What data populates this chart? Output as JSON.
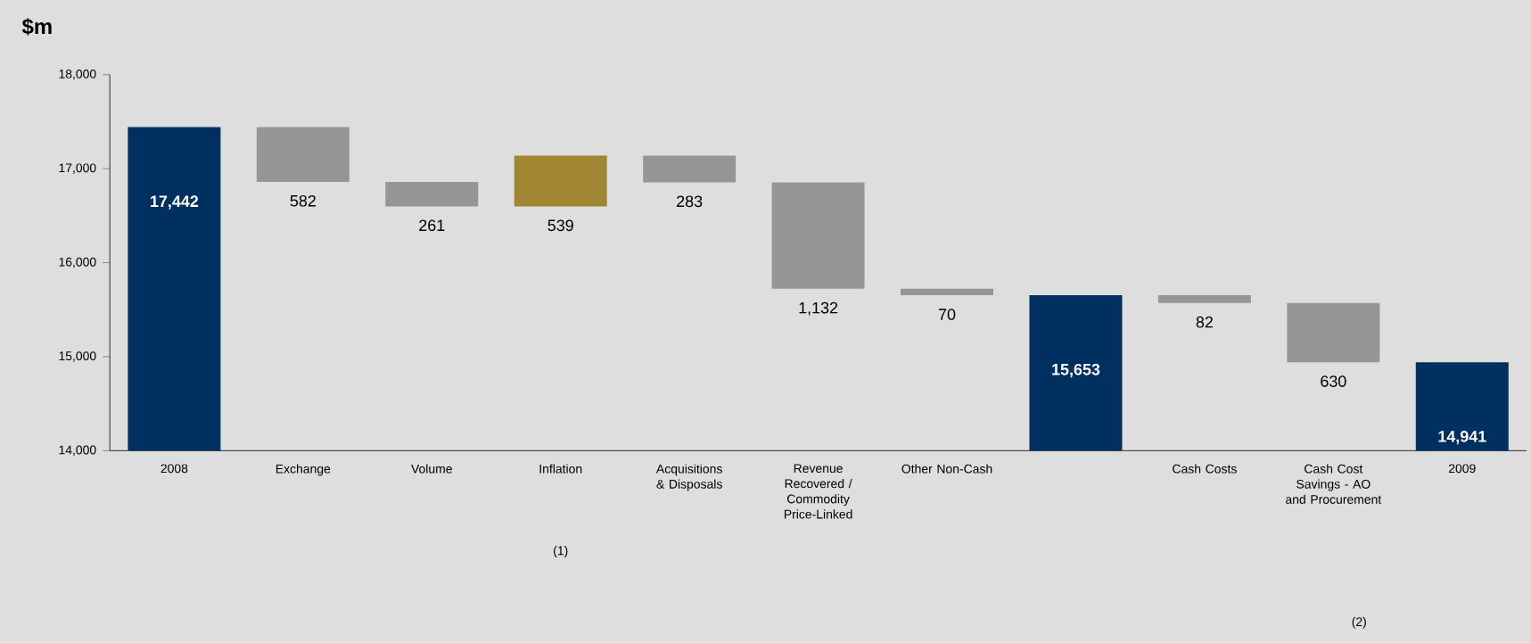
{
  "chart_data": {
    "type": "bar",
    "ylabel": "$m",
    "categories": [
      "2008",
      "Exchange",
      "Volume",
      "Inflation",
      "Acquisitions & Disposals",
      "Revenue Recovered / Commodity Price-Linked",
      "Other Non-Cash",
      null,
      "Cash Costs",
      "Cash Cost Savings - AO and Procurement",
      "2009"
    ],
    "values": [
      17442,
      -582,
      -261,
      539,
      -283,
      -1132,
      -70,
      15653,
      -82,
      -630,
      14941
    ],
    "base": [
      null,
      17442,
      16860,
      16599,
      17138,
      16855,
      15723,
      null,
      15653,
      15571,
      null
    ],
    "colors": [
      "#00305f",
      "#969696",
      "#969696",
      "#a08532",
      "#969696",
      "#969696",
      "#969696",
      "#00305f",
      "#969696",
      "#969696",
      "#00305f"
    ],
    "value_labels": [
      "17,442",
      "582",
      "261",
      "539",
      "283",
      "1,132",
      "70",
      "15,653",
      "82",
      "630",
      "14,941"
    ],
    "ylim": [
      14000,
      18000
    ],
    "yticks": [
      {
        "value": 14000,
        "label": "14,000"
      },
      {
        "value": 15000,
        "label": "15,000"
      },
      {
        "value": 16000,
        "label": "16,000"
      },
      {
        "value": 17000,
        "label": "17,000"
      },
      {
        "value": 18000,
        "label": "18,000"
      }
    ],
    "annotations": [
      "(1)",
      "(2)"
    ]
  }
}
